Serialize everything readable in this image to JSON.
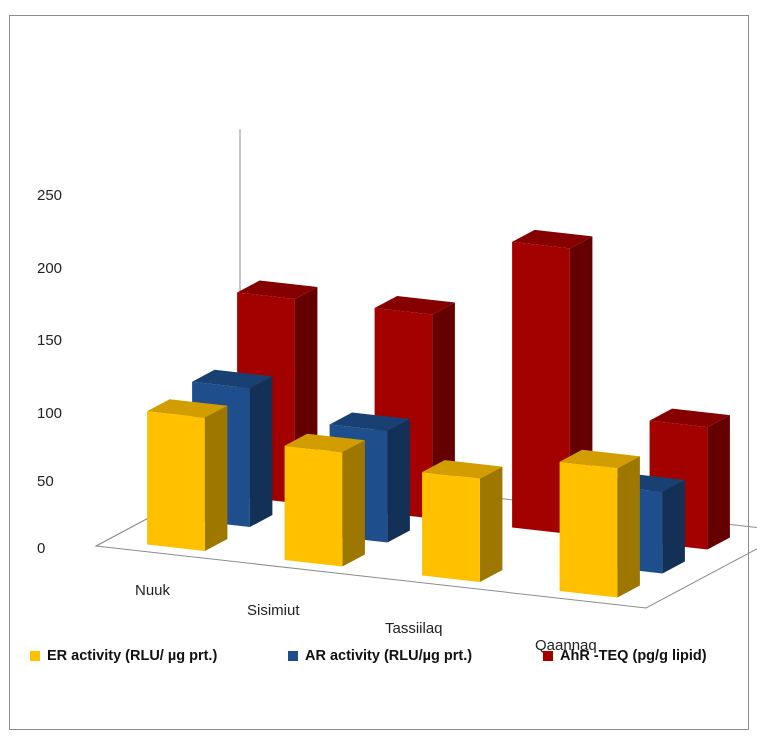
{
  "chart_data": {
    "type": "bar",
    "subtype": "3d-clustered-depth",
    "categories": [
      "Nuuk",
      "Sisimiut",
      "Tassiilaq",
      "Qaannaq"
    ],
    "series": [
      {
        "name": "ER activity (RLU/ µg prt.)",
        "color": "#FFC000",
        "values": [
          98,
          84,
          76,
          95
        ]
      },
      {
        "name": "AR activity (RLU/µg prt.)",
        "color": "#1F4E8C",
        "values": [
          102,
          82,
          0,
          60
        ]
      },
      {
        "name": "AhR -TEQ (pg/g lipid)",
        "color": "#A30000",
        "values": [
          150,
          150,
          210,
          90
        ]
      }
    ],
    "y_ticks": [
      "0",
      "50",
      "100",
      "150",
      "200",
      "250"
    ],
    "ylim": [
      0,
      250
    ],
    "legend_position": "bottom",
    "grid": false
  }
}
